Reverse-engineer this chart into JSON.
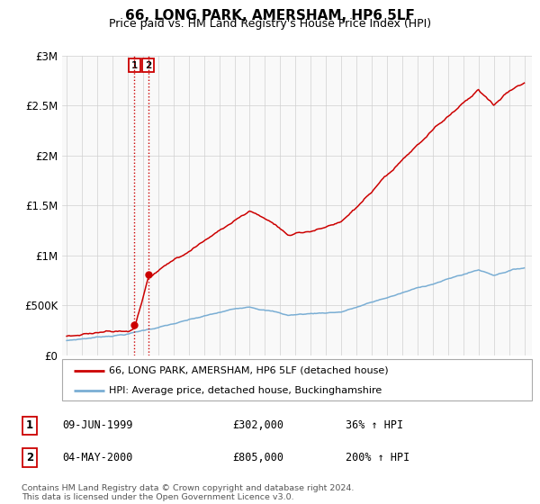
{
  "title": "66, LONG PARK, AMERSHAM, HP6 5LF",
  "subtitle": "Price paid vs. HM Land Registry's House Price Index (HPI)",
  "legend_line1": "66, LONG PARK, AMERSHAM, HP6 5LF (detached house)",
  "legend_line2": "HPI: Average price, detached house, Buckinghamshire",
  "sale1_label": "1",
  "sale1_date": "09-JUN-1999",
  "sale1_price": "£302,000",
  "sale1_hpi": "36% ↑ HPI",
  "sale1_year": 1999.44,
  "sale1_value": 302000,
  "sale2_label": "2",
  "sale2_date": "04-MAY-2000",
  "sale2_price": "£805,000",
  "sale2_hpi": "200% ↑ HPI",
  "sale2_year": 2000.34,
  "sale2_value": 805000,
  "line_color_red": "#cc0000",
  "line_color_blue": "#7aaed4",
  "box_color": "#cc0000",
  "footer": "Contains HM Land Registry data © Crown copyright and database right 2024.\nThis data is licensed under the Open Government Licence v3.0.",
  "ylim": [
    0,
    3000000
  ],
  "yticks": [
    0,
    500000,
    1000000,
    1500000,
    2000000,
    2500000,
    3000000
  ],
  "ytick_labels": [
    "£0",
    "£500K",
    "£1M",
    "£1.5M",
    "£2M",
    "£2.5M",
    "£3M"
  ],
  "xlim_start": 1994.7,
  "xlim_end": 2025.5
}
